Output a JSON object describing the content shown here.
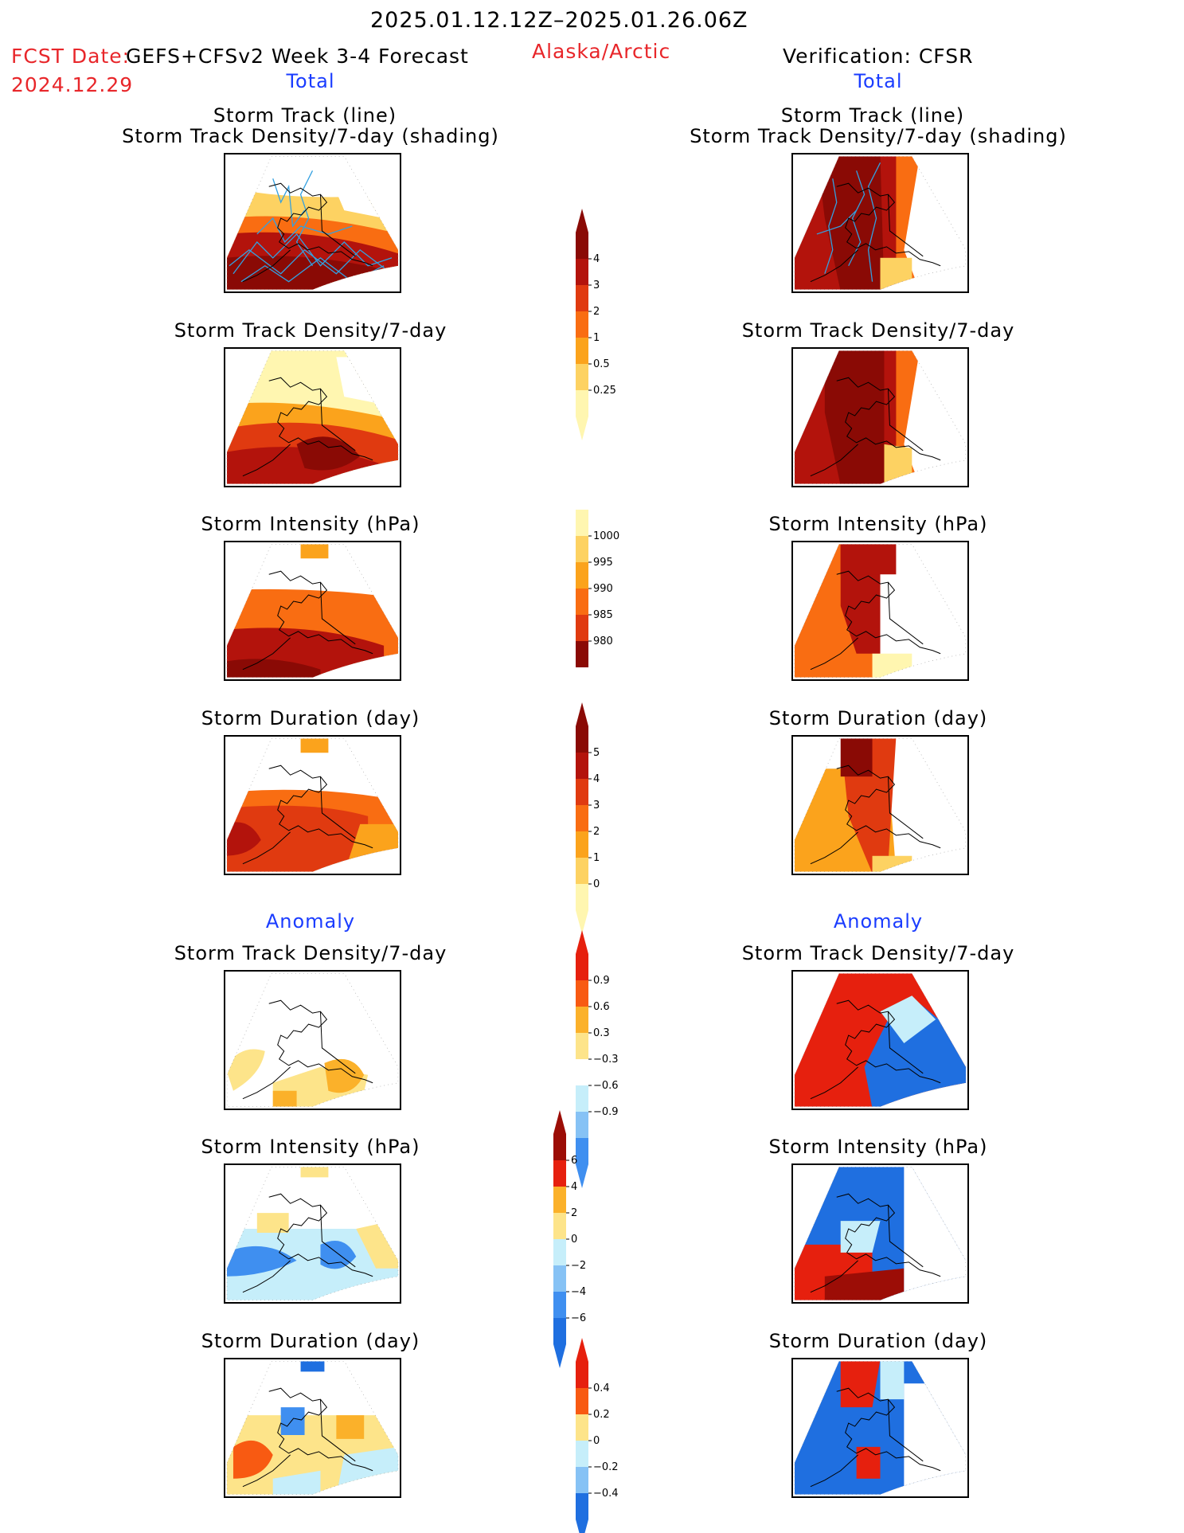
{
  "header": {
    "date_range": "2025.01.12.12Z–2025.01.26.06Z",
    "fcst_date_label": "FCST Date:",
    "fcst_date": "2024.12.29",
    "model": "GEFS+CFSv2 Week 3-4 Forecast",
    "region": "Alaska/Arctic",
    "verification": "Verification: CFSR"
  },
  "sections": {
    "total_left": "Total",
    "total_right": "Total",
    "anomaly_left": "Anomaly",
    "anomaly_right": "Anomaly"
  },
  "panel_titles": {
    "track_line": "Storm Track (line)",
    "track_density_shading": "Storm Track Density/7-day (shading)",
    "track_density": "Storm Track Density/7-day",
    "intensity": "Storm Intensity (hPa)",
    "duration": "Storm Duration (day)"
  },
  "colorbars": {
    "density_total": [
      "4",
      "3",
      "2",
      "1",
      "0.5",
      "0.25"
    ],
    "intensity_total": [
      "1000",
      "995",
      "990",
      "985",
      "980"
    ],
    "duration_total": [
      "5",
      "4",
      "3",
      "2",
      "1",
      "0"
    ],
    "density_anom": [
      "0.9",
      "0.6",
      "0.3",
      "−0.3",
      "−0.6",
      "−0.9"
    ],
    "intensity_anom": [
      "6",
      "4",
      "2",
      "0",
      "−2",
      "−4",
      "−6"
    ],
    "duration_anom": [
      "0.4",
      "0.2",
      "0",
      "−0.2",
      "−0.4"
    ]
  },
  "colors": {
    "total_scale": [
      "#fff6b0",
      "#fdd262",
      "#fba31c",
      "#f96d12",
      "#e03a10",
      "#b3130c",
      "#8a0a05"
    ],
    "anom_scale": [
      "#1f6fe0",
      "#3f8ff0",
      "#86c2f5",
      "#c6eefa",
      "#ffffff",
      "#fde48a",
      "#fbb12a",
      "#f85a12",
      "#e6200e",
      "#9c0d06"
    ],
    "track_line": "#33a0e0",
    "title_red": "#e8262a",
    "title_blue": "#1a3cff"
  }
}
